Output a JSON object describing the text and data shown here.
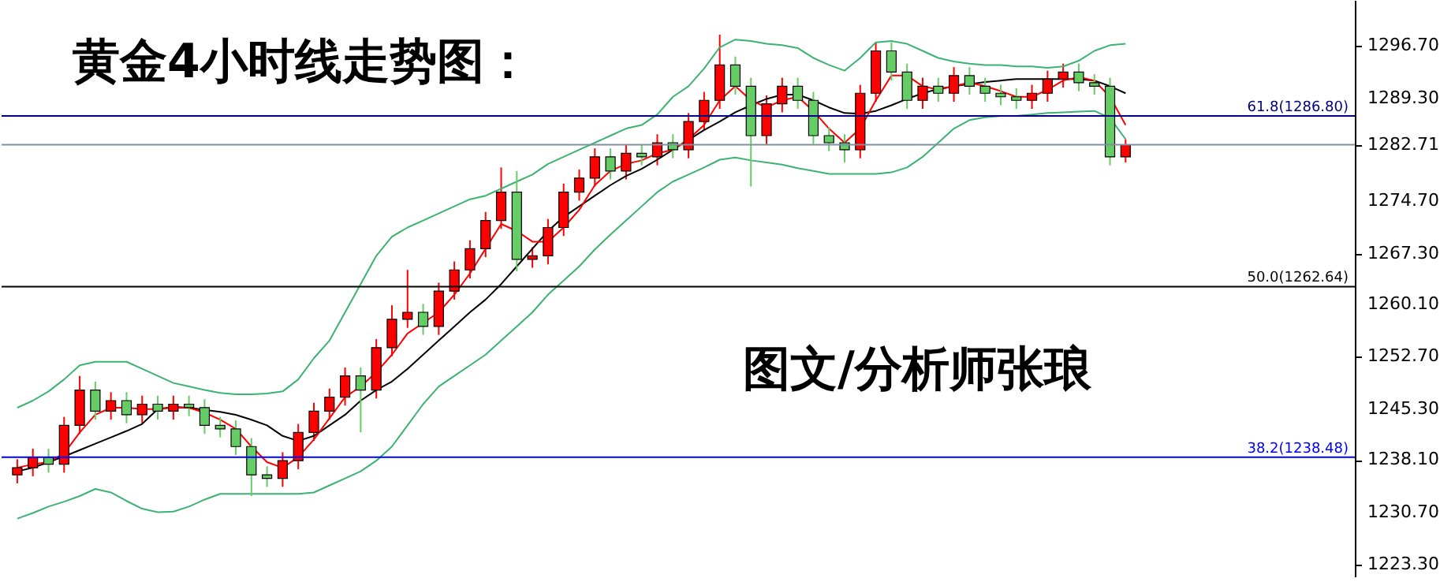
{
  "chart_data": {
    "type": "candlestick",
    "title": "黄金4小时线走势图：",
    "annotations": [
      "图文/分析师张琅"
    ],
    "categories": [
      null,
      null,
      null,
      null,
      null,
      null,
      null,
      null,
      null,
      null,
      null,
      null,
      null,
      null,
      null,
      null,
      null,
      null,
      null,
      null,
      null,
      null,
      null,
      null,
      null,
      null,
      null,
      null,
      null,
      null,
      null,
      null,
      null,
      null,
      null,
      null,
      null,
      null,
      null,
      null,
      null,
      null,
      null,
      null,
      null,
      null,
      null,
      null,
      null,
      null,
      null,
      null,
      null,
      null,
      null,
      null,
      null,
      null,
      null,
      null,
      null,
      null,
      null,
      null,
      null,
      null,
      null,
      null,
      null,
      null,
      null,
      null
    ],
    "ohlc": [
      [
        1236,
        1238.2,
        1234.8,
        1237
      ],
      [
        1237,
        1239.7,
        1235.8,
        1238.5
      ],
      [
        1238.5,
        1239.7,
        1236.3,
        1237.5
      ],
      [
        1237.5,
        1244.2,
        1236.3,
        1243
      ],
      [
        1243,
        1250,
        1241.8,
        1248
      ],
      [
        1248,
        1249.2,
        1243.8,
        1245
      ],
      [
        1245,
        1247.7,
        1243.8,
        1246.5
      ],
      [
        1246.5,
        1247.7,
        1243.3,
        1244.5
      ],
      [
        1244.5,
        1247.2,
        1243.3,
        1246
      ],
      [
        1246,
        1247.2,
        1243.8,
        1245
      ],
      [
        1245,
        1247.2,
        1243.8,
        1246
      ],
      [
        1246,
        1247.2,
        1244.3,
        1245.5
      ],
      [
        1245.5,
        1246.7,
        1241.8,
        1243
      ],
      [
        1243,
        1244.2,
        1241.3,
        1242.5
      ],
      [
        1242.5,
        1243.7,
        1238.8,
        1240
      ],
      [
        1240,
        1241.2,
        1233,
        1236
      ],
      [
        1236,
        1237.2,
        1234.3,
        1235.5
      ],
      [
        1235.5,
        1239.2,
        1234.3,
        1238
      ],
      [
        1238,
        1243.2,
        1236.8,
        1242
      ],
      [
        1242,
        1246.2,
        1240.8,
        1245
      ],
      [
        1245,
        1248.2,
        1243.8,
        1247
      ],
      [
        1247,
        1251.2,
        1245.8,
        1250
      ],
      [
        1250,
        1251.2,
        1242,
        1248
      ],
      [
        1248,
        1255.2,
        1246.8,
        1254
      ],
      [
        1254,
        1260,
        1252.8,
        1258
      ],
      [
        1258,
        1265,
        1256.8,
        1259
      ],
      [
        1259,
        1260.2,
        1255.8,
        1257
      ],
      [
        1257,
        1263.2,
        1255.8,
        1262
      ],
      [
        1262,
        1266.2,
        1260.8,
        1265
      ],
      [
        1265,
        1269.2,
        1263.8,
        1268
      ],
      [
        1268,
        1273.2,
        1266.8,
        1272
      ],
      [
        1272,
        1279.5,
        1270.8,
        1276
      ],
      [
        1276,
        1279,
        1264.8,
        1266.5
      ],
      [
        1266.5,
        1268.2,
        1265.3,
        1267
      ],
      [
        1267,
        1272.2,
        1265.8,
        1271
      ],
      [
        1271,
        1277.2,
        1269.8,
        1276
      ],
      [
        1276,
        1279.2,
        1274.8,
        1278
      ],
      [
        1278,
        1282.2,
        1276.8,
        1281
      ],
      [
        1281,
        1282.2,
        1277.8,
        1279
      ],
      [
        1279,
        1282.7,
        1277.8,
        1281.5
      ],
      [
        1281.5,
        1282.7,
        1279.8,
        1281
      ],
      [
        1281,
        1284.2,
        1279.8,
        1283
      ],
      [
        1283,
        1284.2,
        1280.8,
        1282
      ],
      [
        1282,
        1287.2,
        1280.8,
        1286
      ],
      [
        1286,
        1290.2,
        1284.8,
        1289
      ],
      [
        1289,
        1298.3,
        1287.8,
        1294
      ],
      [
        1294,
        1295.2,
        1289.8,
        1291
      ],
      [
        1291,
        1292.2,
        1276.8,
        1284
      ],
      [
        1284,
        1289.7,
        1282.8,
        1288.5
      ],
      [
        1288.5,
        1292.2,
        1287.3,
        1291
      ],
      [
        1291,
        1292.2,
        1287.8,
        1289
      ],
      [
        1289,
        1290.2,
        1282.8,
        1284
      ],
      [
        1284,
        1285.2,
        1281.8,
        1283
      ],
      [
        1283,
        1284.2,
        1280.2,
        1282
      ],
      [
        1282,
        1291.2,
        1280.8,
        1290
      ],
      [
        1290,
        1297.2,
        1288.8,
        1296
      ],
      [
        1296,
        1297.2,
        1291.8,
        1293
      ],
      [
        1293,
        1294.2,
        1287.8,
        1289
      ],
      [
        1289,
        1292.2,
        1287.8,
        1291
      ],
      [
        1291,
        1292.2,
        1288.8,
        1290
      ],
      [
        1290,
        1293.7,
        1288.8,
        1292.5
      ],
      [
        1292.5,
        1293.7,
        1289.8,
        1291
      ],
      [
        1291,
        1292.2,
        1288.8,
        1290
      ],
      [
        1290,
        1291.2,
        1288.3,
        1289.5
      ],
      [
        1289.5,
        1290.7,
        1287.8,
        1289
      ],
      [
        1289,
        1291.2,
        1287.8,
        1290
      ],
      [
        1290,
        1293.2,
        1288.8,
        1292
      ],
      [
        1292,
        1294.2,
        1290.8,
        1293
      ],
      [
        1293,
        1294.2,
        1290.3,
        1291.5
      ],
      [
        1291.5,
        1292.7,
        1289.8,
        1291
      ],
      [
        1291,
        1292.2,
        1279.8,
        1281
      ],
      [
        1281,
        1283.5,
        1280.2,
        1282.71
      ]
    ],
    "colors": [
      "#ff0000",
      "#ff0000",
      "#66cc66",
      "#ff0000",
      "#ff0000",
      "#66cc66",
      "#ff0000",
      "#66cc66",
      "#ff0000",
      "#66cc66",
      "#ff0000",
      "#66cc66",
      "#66cc66",
      "#66cc66",
      "#66cc66",
      "#66cc66",
      "#66cc66",
      "#ff0000",
      "#ff0000",
      "#ff0000",
      "#ff0000",
      "#ff0000",
      "#66cc66",
      "#ff0000",
      "#ff0000",
      "#ff0000",
      "#66cc66",
      "#ff0000",
      "#ff0000",
      "#ff0000",
      "#ff0000",
      "#ff0000",
      "#66cc66",
      "#ff0000",
      "#ff0000",
      "#ff0000",
      "#ff0000",
      "#ff0000",
      "#66cc66",
      "#ff0000",
      "#66cc66",
      "#ff0000",
      "#66cc66",
      "#ff0000",
      "#ff0000",
      "#ff0000",
      "#66cc66",
      "#66cc66",
      "#ff0000",
      "#ff0000",
      "#66cc66",
      "#66cc66",
      "#66cc66",
      "#66cc66",
      "#ff0000",
      "#ff0000",
      "#66cc66",
      "#66cc66",
      "#ff0000",
      "#66cc66",
      "#ff0000",
      "#66cc66",
      "#66cc66",
      "#66cc66",
      "#66cc66",
      "#ff0000",
      "#ff0000",
      "#ff0000",
      "#66cc66",
      "#66cc66",
      "#66cc66",
      "#ff0000"
    ],
    "series": [
      {
        "type": "line",
        "color": "#3cb371",
        "values": [
          1245.5,
          1246.5,
          1247.8,
          1249.5,
          1251.5,
          1252,
          1252,
          1252,
          1251,
          1250,
          1249,
          1248.5,
          1248,
          1247.6,
          1247.4,
          1247.4,
          1247.5,
          1247.8,
          1249.5,
          1252.5,
          1255,
          1259,
          1263,
          1267,
          1269.7,
          1271,
          1272,
          1273,
          1274,
          1275,
          1275.5,
          1276.5,
          1277.5,
          1278.5,
          1280,
          1281,
          1282,
          1283,
          1284,
          1285,
          1285.5,
          1287,
          1289.5,
          1291,
          1293.5,
          1296.5,
          1297.6,
          1297.4,
          1297,
          1296.8,
          1296.4,
          1295,
          1294,
          1293.2,
          1295,
          1297.2,
          1297.4,
          1297,
          1296,
          1295,
          1294.5,
          1294.2,
          1294,
          1294,
          1293.8,
          1293.8,
          1293.6,
          1293.8,
          1294.6,
          1296,
          1296.8,
          1297
        ]
      },
      {
        "type": "line",
        "color": "#3cb371",
        "values": [
          1229.8,
          1230.6,
          1231.5,
          1232.2,
          1233,
          1234,
          1233.5,
          1232.3,
          1231.2,
          1230.7,
          1230.8,
          1231.5,
          1232.5,
          1233.3,
          1233.3,
          1233.3,
          1233.3,
          1233.3,
          1233.3,
          1233.5,
          1234.5,
          1235.5,
          1236.5,
          1238,
          1240,
          1243,
          1246,
          1248.5,
          1250,
          1251.5,
          1253,
          1255,
          1257,
          1259,
          1261.5,
          1263.5,
          1265.5,
          1267.9,
          1270,
          1272,
          1274,
          1276,
          1277.5,
          1278.5,
          1279.5,
          1280.6,
          1280.9,
          1280.5,
          1280.2,
          1279.9,
          1279.4,
          1279,
          1278.6,
          1278.6,
          1278.6,
          1278.6,
          1278.8,
          1279.5,
          1281,
          1283,
          1285,
          1286.2,
          1286.6,
          1286.8,
          1286.8,
          1287,
          1287.2,
          1287.3,
          1287.4,
          1287.5,
          1286.5,
          1283.5
        ]
      },
      {
        "type": "line",
        "color": "#000000",
        "values": [
          1236.5,
          1237,
          1237.8,
          1238.6,
          1239.5,
          1240.4,
          1241.3,
          1242.2,
          1243.2,
          1245.3,
          1245.6,
          1245.5,
          1245.2,
          1244.9,
          1244.5,
          1243.8,
          1243,
          1241.5,
          1240.8,
          1241.5,
          1243,
          1244.5,
          1246.5,
          1248,
          1249.2,
          1251,
          1253,
          1255,
          1257,
          1259,
          1260.8,
          1263,
          1265.5,
          1268,
          1270.5,
          1272.5,
          1274,
          1275.5,
          1277,
          1278.3,
          1279.3,
          1280.6,
          1282,
          1283.4,
          1284.8,
          1286,
          1287.3,
          1288.3,
          1289.2,
          1289.8,
          1289.8,
          1289,
          1288,
          1287.2,
          1287.1,
          1287.5,
          1288.3,
          1289.2,
          1290,
          1290.6,
          1291,
          1291.3,
          1291.6,
          1291.8,
          1292,
          1292,
          1292,
          1292,
          1292,
          1291.8,
          1291,
          1290
        ]
      },
      {
        "type": "line",
        "color": "#ff0000",
        "values": [
          1237,
          1237.5,
          1237.8,
          1239,
          1242,
          1244.5,
          1245.5,
          1245.5,
          1245.3,
          1245.3,
          1245.5,
          1245.5,
          1244.8,
          1243.8,
          1242.5,
          1240,
          1237.8,
          1237,
          1238.5,
          1241,
          1244,
          1247,
          1248.5,
          1250.5,
          1253,
          1256,
          1257.5,
          1259,
          1261.5,
          1264.5,
          1268,
          1271.5,
          1270.5,
          1269,
          1269,
          1271,
          1273.5,
          1277,
          1279,
          1280,
          1280.5,
          1281.5,
          1282,
          1283.5,
          1285.5,
          1289,
          1291,
          1289,
          1288,
          1289,
          1289.5,
          1287.5,
          1285,
          1283,
          1285,
          1289,
          1292.5,
          1292.5,
          1291,
          1290.5,
          1291,
          1291.5,
          1291,
          1290.3,
          1289.5,
          1289.5,
          1290.5,
          1291.8,
          1292.3,
          1291.8,
          1289.5,
          1285.5
        ]
      }
    ],
    "ylim": [
      1221.5,
      1303.2
    ],
    "yticks": [
      {
        "value": 1223.3,
        "label": "1223.30"
      },
      {
        "value": 1230.7,
        "label": "1230.70"
      },
      {
        "value": 1238.1,
        "label": "1238.10"
      },
      {
        "value": 1245.3,
        "label": "1245.30"
      },
      {
        "value": 1252.7,
        "label": "1252.70"
      },
      {
        "value": 1260.1,
        "label": "1260.10"
      },
      {
        "value": 1267.3,
        "label": "1267.30"
      },
      {
        "value": 1274.7,
        "label": "1274.70"
      },
      1282.71,
      {
        "value": 1289.3,
        "label": "1289.30"
      },
      {
        "value": 1296.7,
        "label": "1296.70"
      }
    ],
    "ref_lines": [
      {
        "axis": "y",
        "value": 1286.8,
        "label": "61.8(1286.80)",
        "color": "#000080"
      },
      {
        "axis": "y",
        "value": 1282.71,
        "color": "#8090a0"
      },
      {
        "axis": "y",
        "value": 1262.64,
        "label": "50.0(1262.64)",
        "color": "#000000"
      },
      {
        "axis": "y",
        "value": 1238.48,
        "label": "38.2(1238.48)",
        "color": "#0000ff"
      }
    ],
    "tick_labels": "y",
    "grid": false
  }
}
